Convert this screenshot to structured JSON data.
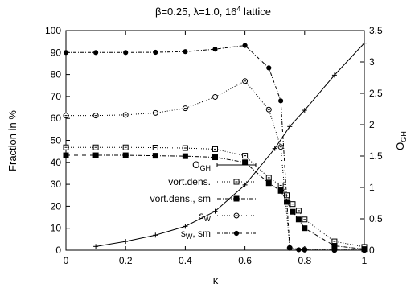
{
  "chart_data": {
    "type": "line",
    "title": {
      "pre": "β=0.25, λ=1.0, 16",
      "sup": "4",
      "post": " lattice"
    },
    "xlabel": "κ",
    "ylabel_left": "Fraction in %",
    "ylabel_right": {
      "main": "O",
      "sub": "GH"
    },
    "xlim": [
      0,
      1
    ],
    "ylim_left": [
      0,
      100
    ],
    "ylim_right": [
      0,
      3.5
    ],
    "xticks": [
      0,
      0.2,
      0.4,
      0.6,
      0.8,
      1
    ],
    "yticks_left": [
      0,
      10,
      20,
      30,
      40,
      50,
      60,
      70,
      80,
      90,
      100
    ],
    "yticks_right": [
      0,
      0.5,
      1,
      1.5,
      2,
      2.5,
      3,
      3.5
    ],
    "legend_position": "center-left",
    "grid": false,
    "series": [
      {
        "name": {
          "main": "O",
          "sub": "GH",
          "post": ""
        },
        "axis": "right",
        "marker": "plus",
        "dash": "",
        "points": [
          [
            0.1,
            0.06
          ],
          [
            0.2,
            0.14
          ],
          [
            0.3,
            0.24
          ],
          [
            0.4,
            0.38
          ],
          [
            0.5,
            0.62
          ],
          [
            0.6,
            1.04
          ],
          [
            0.7,
            1.62
          ],
          [
            0.75,
            1.97
          ],
          [
            0.8,
            2.23
          ],
          [
            0.9,
            2.79
          ],
          [
            1.0,
            3.3
          ]
        ]
      },
      {
        "name": {
          "main": "vort.dens.",
          "sub": "",
          "post": ""
        },
        "axis": "left",
        "marker": "square-open",
        "dash": "1,2",
        "points": [
          [
            0,
            46.8
          ],
          [
            0.1,
            46.8
          ],
          [
            0.2,
            46.8
          ],
          [
            0.3,
            46.7
          ],
          [
            0.4,
            46.5
          ],
          [
            0.5,
            46.0
          ],
          [
            0.6,
            43.0
          ],
          [
            0.68,
            33.0
          ],
          [
            0.72,
            29.5
          ],
          [
            0.74,
            25.0
          ],
          [
            0.76,
            21.0
          ],
          [
            0.78,
            18.0
          ],
          [
            0.8,
            14.0
          ],
          [
            0.9,
            4.0
          ],
          [
            1.0,
            1.5
          ]
        ]
      },
      {
        "name": {
          "main": "vort.dens., sm",
          "sub": "",
          "post": ""
        },
        "axis": "left",
        "marker": "square-filled",
        "dash": "5,2,1,2",
        "points": [
          [
            0,
            43.2
          ],
          [
            0.1,
            43.2
          ],
          [
            0.2,
            43.2
          ],
          [
            0.3,
            43.0
          ],
          [
            0.4,
            42.8
          ],
          [
            0.5,
            42.3
          ],
          [
            0.6,
            40.0
          ],
          [
            0.68,
            30.5
          ],
          [
            0.72,
            27.0
          ],
          [
            0.74,
            22.0
          ],
          [
            0.76,
            17.5
          ],
          [
            0.78,
            14.0
          ],
          [
            0.8,
            10.0
          ],
          [
            0.9,
            2.0
          ],
          [
            1.0,
            0.5
          ]
        ]
      },
      {
        "name": {
          "main": "s",
          "sub": "W",
          "post": ""
        },
        "axis": "left",
        "marker": "circle-open",
        "dash": "1,2",
        "points": [
          [
            0,
            61.3
          ],
          [
            0.1,
            61.3
          ],
          [
            0.2,
            61.6
          ],
          [
            0.3,
            62.5
          ],
          [
            0.4,
            64.6
          ],
          [
            0.5,
            69.8
          ],
          [
            0.6,
            77.0
          ],
          [
            0.68,
            64.0
          ],
          [
            0.72,
            47.0
          ],
          [
            0.75,
            1.0
          ],
          [
            0.8,
            0.3
          ],
          [
            0.9,
            0.1
          ],
          [
            1.0,
            0.1
          ]
        ]
      },
      {
        "name": {
          "main": "s",
          "sub": "W",
          "post": ", sm"
        },
        "axis": "left",
        "marker": "circle-filled",
        "dash": "4,2,1,2",
        "points": [
          [
            0,
            90.0
          ],
          [
            0.1,
            90.0
          ],
          [
            0.2,
            90.0
          ],
          [
            0.3,
            90.1
          ],
          [
            0.4,
            90.4
          ],
          [
            0.5,
            91.5
          ],
          [
            0.6,
            93.2
          ],
          [
            0.68,
            83.0
          ],
          [
            0.72,
            68.0
          ],
          [
            0.75,
            1.0
          ],
          [
            0.78,
            0.2
          ],
          [
            0.8,
            0.1
          ],
          [
            0.9,
            0.1
          ],
          [
            1.0,
            0.1
          ]
        ]
      }
    ]
  }
}
